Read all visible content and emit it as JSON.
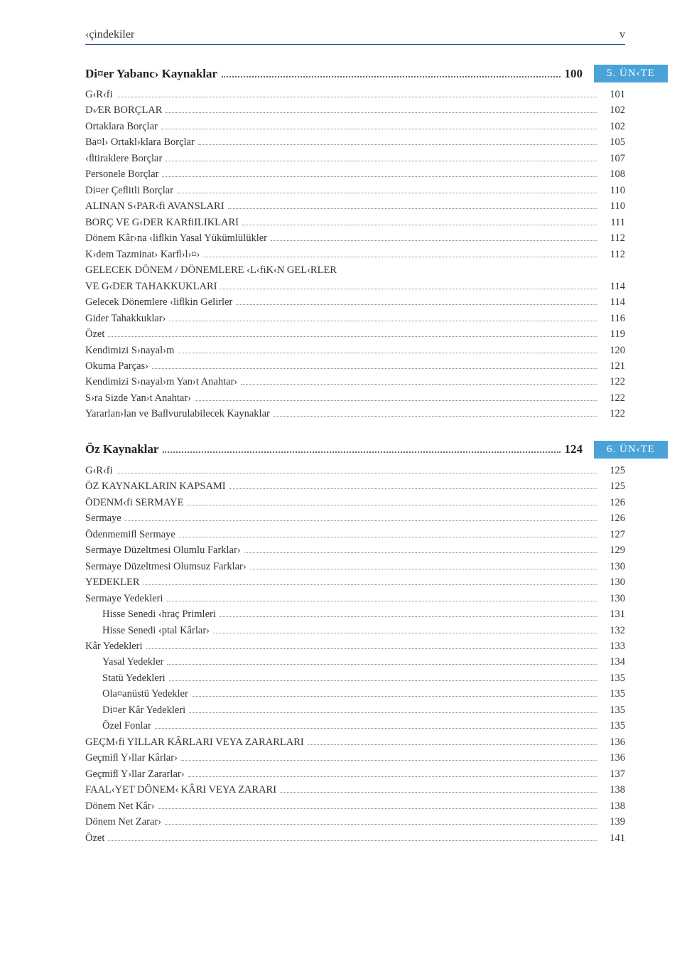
{
  "header": {
    "title": "‹çindekiler",
    "page": "v"
  },
  "colors": {
    "border": "#2b4a7a",
    "header_text": "#7a6a5a",
    "unit_bg": "#4aa3d8",
    "unit_fg": "#ffffff"
  },
  "unit5": {
    "tag": "5. ÜN‹TE",
    "title": "Di¤er Yabanc› Kaynaklar",
    "page": "100",
    "items": [
      {
        "t": "G‹R‹fi",
        "p": "101",
        "i": 0
      },
      {
        "t": "D‹⁄ER BORÇLAR",
        "p": "102",
        "i": 0
      },
      {
        "t": "Ortaklara Borçlar",
        "p": "102",
        "i": 0
      },
      {
        "t": "Ba¤l› Ortakl›klara Borçlar",
        "p": "105",
        "i": 0
      },
      {
        "t": "‹ﬂtiraklere Borçlar",
        "p": "107",
        "i": 0
      },
      {
        "t": "Personele Borçlar",
        "p": "108",
        "i": 0
      },
      {
        "t": "Di¤er Çeﬂitli Borçlar",
        "p": "110",
        "i": 0
      },
      {
        "t": "ALINAN S‹PAR‹fi AVANSLARI",
        "p": "110",
        "i": 0
      },
      {
        "t": "BORÇ VE G‹DER KARfiILIKLARI",
        "p": "111",
        "i": 0
      },
      {
        "t": "Dönem Kâr›na ‹liﬂkin Yasal Yükümlülükler",
        "p": "112",
        "i": 0
      },
      {
        "t": "K›dem Tazminat› Karﬂ›l›¤›",
        "p": "112",
        "i": 0
      },
      {
        "t": "GELECEK DÖNEM / DÖNEMLERE ‹L‹fiK‹N GEL‹RLER",
        "p": "",
        "i": 0,
        "noleader": true
      },
      {
        "t": "VE G‹DER TAHAKKUKLARI",
        "p": "114",
        "i": 0
      },
      {
        "t": "Gelecek Dönemlere ‹liﬂkin Gelirler",
        "p": "114",
        "i": 0
      },
      {
        "t": "Gider Tahakkuklar›",
        "p": "116",
        "i": 0
      },
      {
        "t": "Özet",
        "p": "119",
        "i": 0
      },
      {
        "t": "Kendimizi S›nayal›m",
        "p": "120",
        "i": 0
      },
      {
        "t": "Okuma Parças›",
        "p": "121",
        "i": 0
      },
      {
        "t": "Kendimizi S›nayal›m Yan›t Anahtar›",
        "p": "122",
        "i": 0
      },
      {
        "t": "S›ra Sizde Yan›t Anahtar›",
        "p": "122",
        "i": 0
      },
      {
        "t": "Yararlan›lan ve Baﬂvurulabilecek Kaynaklar",
        "p": "122",
        "i": 0
      }
    ]
  },
  "unit6": {
    "tag": "6. ÜN‹TE",
    "title": "Öz Kaynaklar",
    "page": "124",
    "items": [
      {
        "t": "G‹R‹fi",
        "p": "125",
        "i": 0
      },
      {
        "t": "ÖZ KAYNAKLARIN KAPSAMI",
        "p": "125",
        "i": 0
      },
      {
        "t": "ÖDENM‹fi SERMAYE",
        "p": "126",
        "i": 0
      },
      {
        "t": "Sermaye",
        "p": "126",
        "i": 0
      },
      {
        "t": "Ödenmemiﬂ Sermaye",
        "p": "127",
        "i": 0
      },
      {
        "t": "Sermaye Düzeltmesi Olumlu Farklar›",
        "p": "129",
        "i": 0
      },
      {
        "t": "Sermaye Düzeltmesi Olumsuz Farklar›",
        "p": "130",
        "i": 0
      },
      {
        "t": "YEDEKLER",
        "p": "130",
        "i": 0
      },
      {
        "t": "Sermaye Yedekleri",
        "p": "130",
        "i": 0
      },
      {
        "t": "Hisse Senedi ‹hraç Primleri",
        "p": "131",
        "i": 1
      },
      {
        "t": "Hisse Senedi ‹ptal Kârlar›",
        "p": "132",
        "i": 1
      },
      {
        "t": "Kâr Yedekleri",
        "p": "133",
        "i": 0
      },
      {
        "t": "Yasal Yedekler",
        "p": "134",
        "i": 1
      },
      {
        "t": "Statü Yedekleri",
        "p": "135",
        "i": 1
      },
      {
        "t": "Ola¤anüstü Yedekler",
        "p": "135",
        "i": 1
      },
      {
        "t": "Di¤er Kâr Yedekleri",
        "p": "135",
        "i": 1
      },
      {
        "t": "Özel Fonlar",
        "p": "135",
        "i": 1
      },
      {
        "t": "GEÇM‹fi YILLAR KÂRLARI VEYA ZARARLARI",
        "p": "136",
        "i": 0
      },
      {
        "t": "Geçmiﬂ Y›llar Kârlar›",
        "p": "136",
        "i": 0
      },
      {
        "t": "Geçmiﬂ Y›llar Zararlar›",
        "p": "137",
        "i": 0
      },
      {
        "t": "FAAL‹YET DÖNEM‹ KÂRI VEYA ZARARI",
        "p": "138",
        "i": 0
      },
      {
        "t": "Dönem Net Kâr›",
        "p": "138",
        "i": 0
      },
      {
        "t": "Dönem Net Zarar›",
        "p": "139",
        "i": 0
      },
      {
        "t": "Özet",
        "p": "141",
        "i": 0
      }
    ]
  }
}
